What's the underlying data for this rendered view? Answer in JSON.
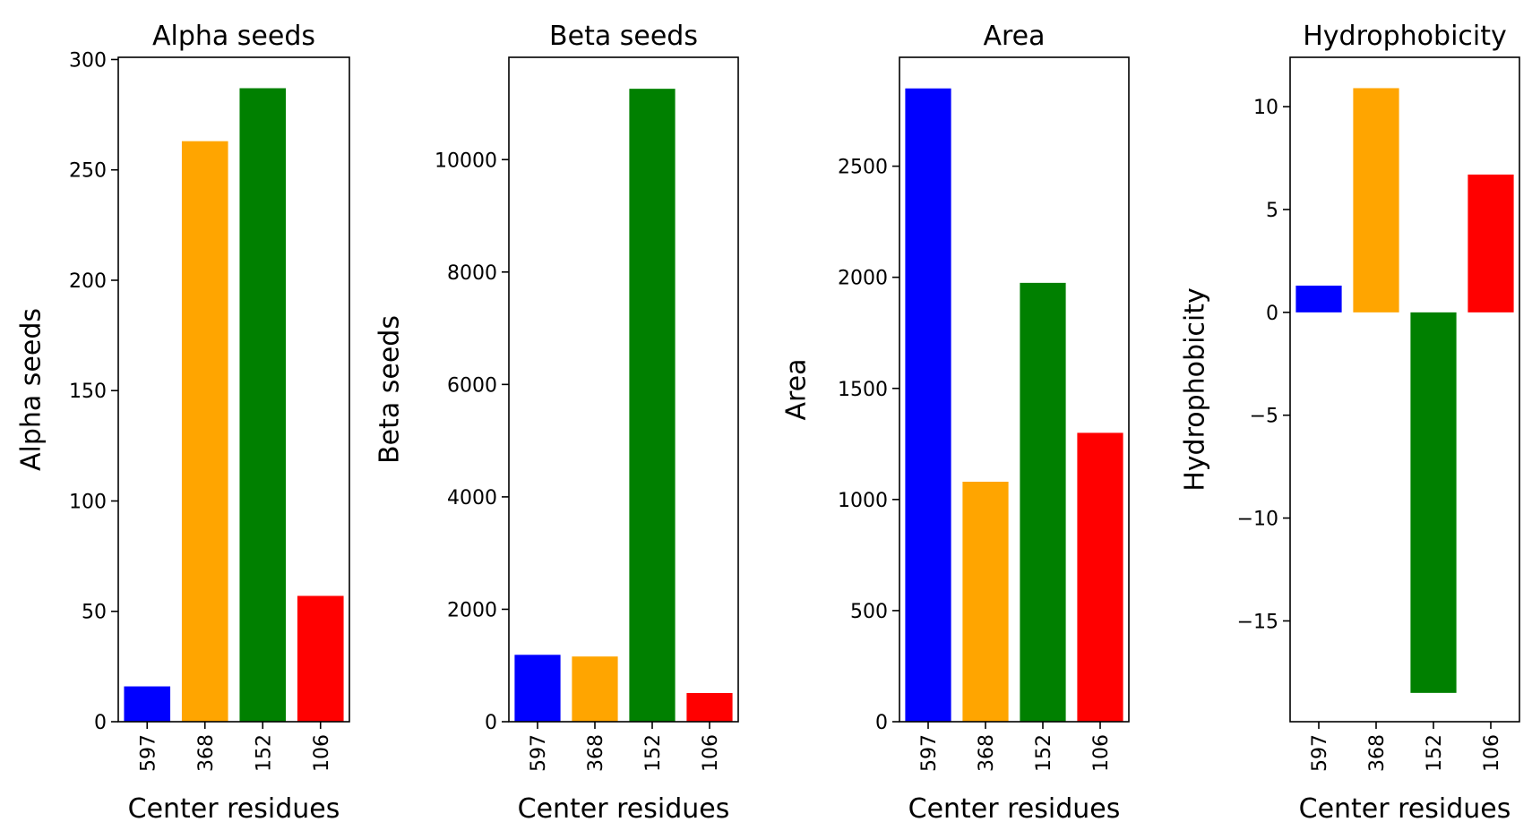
{
  "chart_data": [
    {
      "type": "bar",
      "title": "Alpha seeds",
      "xlabel": "Center residues",
      "ylabel": "Alpha seeds",
      "categories": [
        "597",
        "368",
        "152",
        "106"
      ],
      "values": [
        16,
        263,
        287,
        57
      ],
      "colors": [
        "#0000ff",
        "#ffa500",
        "#008000",
        "#ff0000"
      ],
      "ylim": [
        0,
        301
      ],
      "yticks": [
        0,
        50,
        100,
        150,
        200,
        250,
        300
      ],
      "ytick_labels": [
        "0",
        "50",
        "100",
        "150",
        "200",
        "250",
        "300"
      ]
    },
    {
      "type": "bar",
      "title": "Beta seeds",
      "xlabel": "Center residues",
      "ylabel": "Beta seeds",
      "categories": [
        "597",
        "368",
        "152",
        "106"
      ],
      "values": [
        1190,
        1160,
        11260,
        510
      ],
      "colors": [
        "#0000ff",
        "#ffa500",
        "#008000",
        "#ff0000"
      ],
      "ylim": [
        0,
        11820
      ],
      "yticks": [
        0,
        2000,
        4000,
        6000,
        8000,
        10000
      ],
      "ytick_labels": [
        "0",
        "2000",
        "4000",
        "6000",
        "8000",
        "10000"
      ]
    },
    {
      "type": "bar",
      "title": "Area",
      "xlabel": "Center residues",
      "ylabel": "Area",
      "categories": [
        "597",
        "368",
        "152",
        "106"
      ],
      "values": [
        2850,
        1080,
        1975,
        1300
      ],
      "colors": [
        "#0000ff",
        "#ffa500",
        "#008000",
        "#ff0000"
      ],
      "ylim": [
        0,
        2990
      ],
      "yticks": [
        0,
        500,
        1000,
        1500,
        2000,
        2500
      ],
      "ytick_labels": [
        "0",
        "500",
        "1000",
        "1500",
        "2000",
        "2500"
      ]
    },
    {
      "type": "bar",
      "title": "Hydrophobicity",
      "xlabel": "Center residues",
      "ylabel": "Hydrophobicity",
      "categories": [
        "597",
        "368",
        "152",
        "106"
      ],
      "values": [
        1.3,
        10.9,
        -18.5,
        6.7
      ],
      "colors": [
        "#0000ff",
        "#ffa500",
        "#008000",
        "#ff0000"
      ],
      "ylim": [
        -19.9,
        12.4
      ],
      "yticks": [
        -15,
        -10,
        -5,
        0,
        5,
        10
      ],
      "ytick_labels": [
        "−15",
        "−10",
        "−5",
        "0",
        "5",
        "10"
      ]
    }
  ]
}
